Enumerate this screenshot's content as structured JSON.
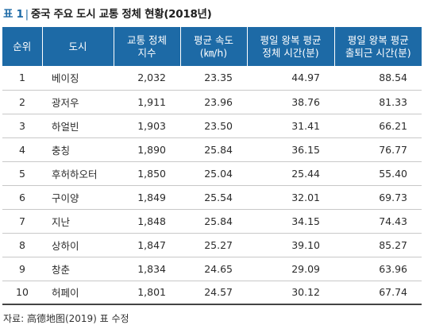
{
  "title": {
    "tag": "표 1",
    "bar": "|",
    "text": "중국 주요 도시 교통 정체 현황(2018년)"
  },
  "table": {
    "headers": [
      [
        "순위"
      ],
      [
        "도시"
      ],
      [
        "교통 정체",
        "지수"
      ],
      [
        "평균 속도",
        "(㎞/h)"
      ],
      [
        "평일 왕복 평균",
        "정체 시간(분)"
      ],
      [
        "평일 왕복 평균",
        "출퇴근 시간(분)"
      ]
    ],
    "rows": [
      [
        "1",
        "베이징",
        "2,032",
        "23.35",
        "44.97",
        "88.54"
      ],
      [
        "2",
        "광저우",
        "1,911",
        "23.96",
        "38.76",
        "81.33"
      ],
      [
        "3",
        "하얼빈",
        "1,903",
        "23.50",
        "31.41",
        "66.21"
      ],
      [
        "4",
        "충칭",
        "1,890",
        "25.84",
        "36.15",
        "76.77"
      ],
      [
        "5",
        "후허하오터",
        "1,850",
        "25.04",
        "25.44",
        "55.40"
      ],
      [
        "6",
        "구이양",
        "1,849",
        "25.54",
        "32.01",
        "69.73"
      ],
      [
        "7",
        "지난",
        "1,848",
        "25.84",
        "34.15",
        "74.43"
      ],
      [
        "8",
        "상하이",
        "1,847",
        "25.27",
        "39.10",
        "85.27"
      ],
      [
        "9",
        "창춘",
        "1,834",
        "24.65",
        "29.09",
        "63.96"
      ],
      [
        "10",
        "허페이",
        "1,801",
        "24.57",
        "30.12",
        "67.74"
      ]
    ]
  },
  "source": "자료: 高德地图(2019) 표 수정",
  "colors": {
    "header_bg": "#1d6aa6",
    "header_text": "#ffffff",
    "title_accent": "#1d6aa6"
  }
}
